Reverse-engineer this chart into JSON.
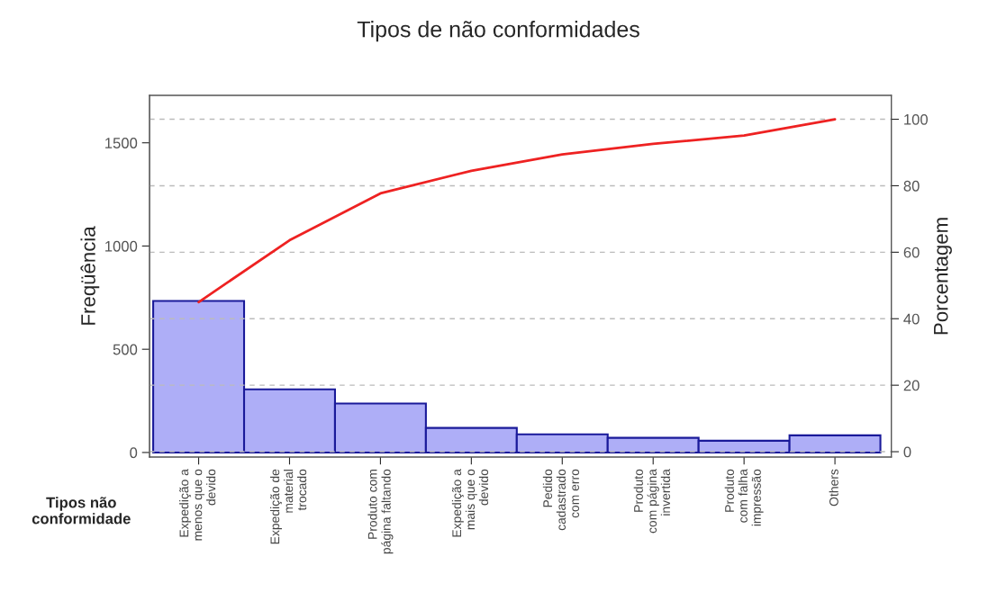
{
  "chart_data": {
    "type": "bar",
    "title": "Tipos de não conformidades",
    "xlabel": "Tipos não\nconformidade",
    "ylabel": "Freqüência",
    "y2label": "Porcentagem",
    "categories": [
      "Expedição a\nmenos que o\ndevido",
      "Expedição de\nmaterial\ntrocado",
      "Produto com\npágina faltando",
      "Expedição a\nmais que o\ndevido",
      "Pedido\ncadastrado\ncom erro",
      "Produto\ncom página\ninvertida",
      "Produto\ncom falha\nimpressão",
      "Others"
    ],
    "series": [
      {
        "color": "#aeaef7",
        "values": [
          734,
          306,
          237,
          119,
          88,
          71,
          57,
          83
        ]
      },
      {
        "type": "line",
        "axis": "y2",
        "color": "#ee2222",
        "values": [
          45.0,
          63.6,
          77.7,
          84.5,
          89.4,
          92.6,
          95.1,
          100
        ]
      }
    ],
    "ylim": [
      -22,
      1730
    ],
    "yticks": [
      0,
      500,
      1000,
      1500
    ],
    "y2lim": [
      -1.6,
      107.2
    ],
    "y2ticks": [
      0,
      20,
      40,
      60,
      80,
      100
    ],
    "grid": "y2",
    "legend": false
  }
}
